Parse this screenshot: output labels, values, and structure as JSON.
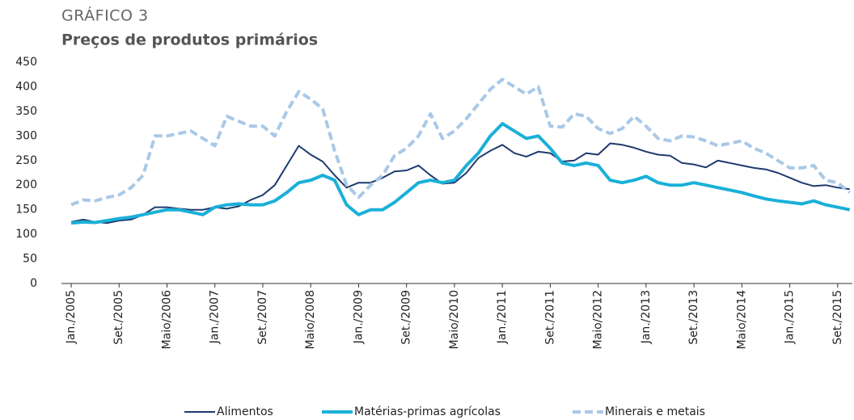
{
  "chart_data": {
    "type": "line",
    "kicker": "GRÁFICO 3",
    "title": "Preços de produtos primários",
    "categories": [
      "Jan./2005",
      null,
      null,
      null,
      "Set./2005",
      null,
      null,
      null,
      "Maio/2006",
      null,
      null,
      null,
      "Jan./2007",
      null,
      null,
      null,
      "Set./2007",
      null,
      null,
      null,
      "Maio/2008",
      null,
      null,
      null,
      "Jan./2009",
      null,
      null,
      null,
      "Set./2009",
      null,
      null,
      null,
      "Maio/2010",
      null,
      null,
      null,
      "Jan./2011",
      null,
      null,
      null,
      "Set./2011",
      null,
      null,
      null,
      "Maio/2012",
      null,
      null,
      null,
      "Jan./2013",
      null,
      null,
      null,
      "Set./2013",
      null,
      null,
      null,
      "Maio/2014",
      null,
      null,
      null,
      "Jan./2015",
      null,
      null,
      null,
      "Set./2015",
      null
    ],
    "series": [
      {
        "name": "Alimentos",
        "color": "#1f3a6e",
        "width": 2,
        "dashed": false,
        "values": [
          125,
          130,
          125,
          123,
          128,
          130,
          140,
          155,
          155,
          152,
          150,
          150,
          155,
          152,
          157,
          170,
          180,
          200,
          240,
          280,
          262,
          248,
          220,
          195,
          205,
          205,
          215,
          228,
          230,
          240,
          220,
          203,
          205,
          225,
          255,
          270,
          282,
          265,
          258,
          268,
          265,
          248,
          250,
          265,
          262,
          285,
          282,
          276,
          268,
          262,
          260,
          245,
          242,
          236,
          250,
          245,
          240,
          235,
          232,
          225,
          215,
          205,
          198,
          200,
          195,
          192
        ]
      },
      {
        "name": "Matérias-primas agrícolas",
        "color": "#1ab0d8",
        "width": 4,
        "dashed": false,
        "values": [
          123,
          125,
          124,
          128,
          132,
          135,
          140,
          145,
          150,
          150,
          145,
          140,
          155,
          160,
          162,
          160,
          160,
          168,
          185,
          205,
          210,
          220,
          210,
          160,
          140,
          150,
          150,
          165,
          185,
          205,
          210,
          205,
          210,
          240,
          265,
          300,
          325,
          310,
          295,
          300,
          275,
          245,
          240,
          245,
          240,
          210,
          205,
          210,
          218,
          205,
          200,
          200,
          205,
          200,
          195,
          190,
          185,
          178,
          172,
          168,
          165,
          162,
          168,
          160,
          155,
          150
        ]
      },
      {
        "name": "Minerais e metais",
        "color": "#a9c8e8",
        "width": 4,
        "dashed": true,
        "values": [
          160,
          170,
          168,
          175,
          180,
          195,
          220,
          300,
          300,
          305,
          310,
          295,
          280,
          340,
          330,
          320,
          320,
          300,
          350,
          390,
          375,
          355,
          270,
          200,
          175,
          200,
          220,
          260,
          275,
          300,
          345,
          295,
          310,
          335,
          365,
          395,
          415,
          400,
          385,
          400,
          320,
          318,
          345,
          340,
          315,
          305,
          315,
          340,
          320,
          295,
          290,
          300,
          298,
          290,
          280,
          285,
          290,
          275,
          265,
          250,
          235,
          235,
          240,
          210,
          205,
          185
        ]
      }
    ],
    "ylim": [
      0,
      450
    ],
    "yticks": [
      0,
      50,
      100,
      150,
      200,
      250,
      300,
      350,
      400,
      450
    ],
    "grid": false,
    "legend": "bottom"
  }
}
